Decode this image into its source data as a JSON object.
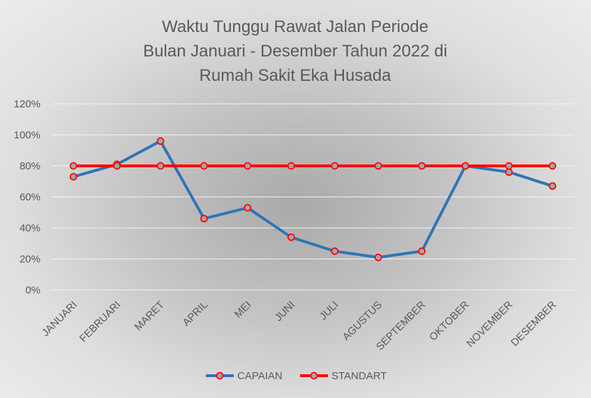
{
  "chart_data": {
    "type": "line",
    "title_lines": [
      "Waktu Tunggu Rawat Jalan Periode",
      "Bulan Januari - Desember Tahun 2022 di",
      "Rumah Sakit Eka Husada"
    ],
    "categories": [
      "JANUARI",
      "FEBRUARI",
      "MARET",
      "APRIL",
      "MEI",
      "JUNI",
      "JULI",
      "AGUSTUS",
      "SEPTEMBER",
      "OKTOBER",
      "NOVEMBER",
      "DESEMBER"
    ],
    "series": [
      {
        "name": "CAPAIAN",
        "color": "#2e75b6",
        "marker_fill": "#a5a5a5",
        "marker_edge": "#ff0000",
        "values": [
          73,
          81,
          96,
          46,
          53,
          34,
          25,
          21,
          25,
          80,
          76,
          67
        ]
      },
      {
        "name": "STANDART",
        "color": "#ff0000",
        "marker_fill": "#a5a5a5",
        "marker_edge": "#ff0000",
        "values": [
          80,
          80,
          80,
          80,
          80,
          80,
          80,
          80,
          80,
          80,
          80,
          80
        ]
      }
    ],
    "ylim": [
      0,
      120
    ],
    "yticks": [
      0,
      20,
      40,
      60,
      80,
      100,
      120
    ],
    "ytick_labels": [
      "0%",
      "20%",
      "40%",
      "60%",
      "80%",
      "100%",
      "120%"
    ],
    "grid": true,
    "legend_position": "bottom"
  }
}
